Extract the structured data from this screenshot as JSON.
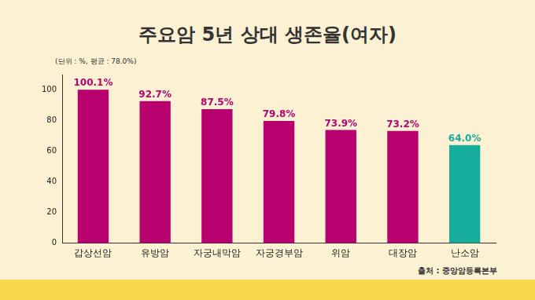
{
  "chart_data": {
    "type": "bar",
    "title": "주요암 5년 상대 생존율(여자)",
    "subtitle": "(단위 : %, 평균 : 78.0%)",
    "source": "출처 : 중앙암등록본부",
    "categories": [
      "갑상선암",
      "유방암",
      "자궁내막암",
      "자궁경부암",
      "위암",
      "대장암",
      "난소암"
    ],
    "values": [
      100.1,
      92.7,
      87.5,
      79.8,
      73.9,
      73.2,
      64.0
    ],
    "value_labels": [
      "100.1%",
      "92.7%",
      "87.5%",
      "79.8%",
      "73.9%",
      "73.2%",
      "64.0%"
    ],
    "colors": [
      "#b8006e",
      "#b8006e",
      "#b8006e",
      "#b8006e",
      "#b8006e",
      "#b8006e",
      "#17ad9c"
    ],
    "ylim": [
      0,
      110
    ],
    "yticks": [
      0,
      20,
      40,
      60,
      80,
      100
    ],
    "grid": false,
    "data_labels": true
  }
}
